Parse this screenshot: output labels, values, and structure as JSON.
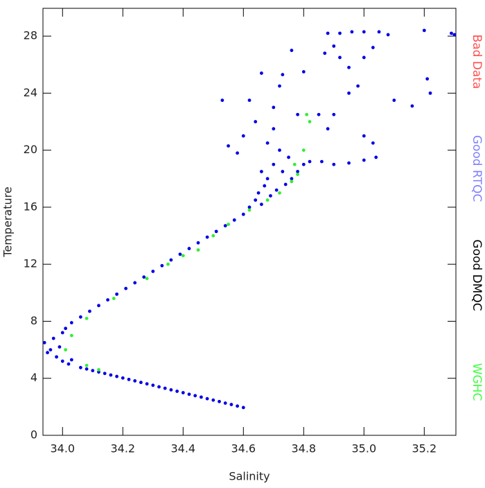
{
  "chart_data": {
    "type": "scatter",
    "x_label": "Salinity",
    "y_label": "Temperature",
    "xlim": [
      33.935,
      35.305
    ],
    "ylim": [
      0,
      29.95
    ],
    "xticks": [
      {
        "value": 34,
        "label": "34.0"
      },
      {
        "value": 34.2,
        "label": "34.2"
      },
      {
        "value": 34.4,
        "label": "34.4"
      },
      {
        "value": 34.6,
        "label": "34.6"
      },
      {
        "value": 34.8,
        "label": "34.8"
      },
      {
        "value": 35,
        "label": "35.0"
      },
      {
        "value": 35.2,
        "label": "35.2"
      }
    ],
    "yticks": [
      0,
      4,
      8,
      12,
      16,
      20,
      24,
      28
    ],
    "series": [
      {
        "name": "Bad Data",
        "color": "#ff5050",
        "marker_color": "#ff0000",
        "x": [],
        "values": []
      },
      {
        "name": "Good RTQC",
        "color": "#8080ff",
        "marker_color": "#0000e6",
        "x": [
          34.06,
          34.08,
          34.1,
          34.12,
          34.14,
          34.16,
          34.18,
          34.2,
          34.22,
          34.24,
          34.26,
          34.28,
          34.3,
          34.32,
          34.34,
          34.36,
          34.38,
          34.4,
          34.42,
          34.44,
          34.46,
          34.48,
          34.5,
          34.52,
          34.54,
          34.56,
          34.58,
          34.6,
          33.94,
          33.96,
          33.97,
          33.98,
          33.99,
          34.0,
          34.02,
          34.03,
          33.95,
          34.0,
          34.01,
          34.03,
          34.06,
          34.09,
          34.12,
          34.15,
          34.18,
          34.21,
          34.24,
          34.27,
          34.3,
          34.33,
          34.36,
          34.39,
          34.42,
          34.45,
          34.48,
          34.51,
          34.54,
          34.57,
          34.6,
          34.62,
          34.64,
          34.65,
          34.66,
          34.67,
          34.68,
          34.69,
          34.7,
          34.71,
          34.72,
          34.73,
          34.74,
          34.75,
          34.76,
          34.78,
          34.8,
          34.66,
          34.68,
          34.7,
          34.62,
          34.64,
          34.66,
          34.7,
          34.72,
          34.73,
          34.76,
          34.78,
          34.6,
          34.58,
          34.55,
          34.53,
          34.82,
          34.86,
          34.9,
          34.95,
          35.0,
          35.04,
          35.03,
          34.88,
          34.9,
          34.95,
          34.87,
          34.9,
          34.92,
          34.95,
          34.88,
          34.92,
          34.96,
          35.0,
          35.05,
          35.08,
          35.2,
          35.29,
          35.3,
          35.1,
          35.16,
          35.22,
          35.21,
          35.0,
          35.03,
          34.98,
          35.0,
          34.85,
          34.8
        ],
        "values": [
          4.75,
          4.65,
          4.54,
          4.44,
          4.34,
          4.23,
          4.13,
          4.02,
          3.92,
          3.82,
          3.71,
          3.61,
          3.51,
          3.4,
          3.3,
          3.19,
          3.09,
          2.99,
          2.88,
          2.78,
          2.68,
          2.57,
          2.47,
          2.37,
          2.26,
          2.16,
          2.05,
          1.95,
          6.5,
          6.0,
          6.8,
          5.5,
          6.2,
          5.2,
          5.0,
          5.3,
          5.8,
          7.2,
          7.5,
          7.9,
          8.3,
          8.7,
          9.1,
          9.5,
          9.9,
          10.3,
          10.7,
          11.1,
          11.5,
          11.9,
          12.3,
          12.7,
          13.1,
          13.5,
          13.9,
          14.3,
          14.7,
          15.1,
          15.5,
          16.0,
          16.5,
          17.0,
          16.2,
          17.5,
          18.0,
          16.8,
          19.0,
          17.2,
          20.0,
          18.5,
          17.6,
          19.5,
          18.0,
          18.5,
          19.0,
          18.5,
          20.5,
          21.5,
          23.5,
          22.0,
          25.4,
          23.0,
          24.5,
          25.3,
          27.0,
          22.5,
          21.0,
          19.8,
          20.3,
          23.5,
          19.2,
          19.2,
          19.0,
          19.1,
          19.3,
          19.5,
          20.5,
          21.5,
          22.5,
          24.0,
          26.8,
          27.3,
          26.5,
          25.8,
          28.2,
          28.2,
          28.3,
          28.3,
          28.3,
          28.1,
          28.4,
          28.2,
          28.1,
          23.5,
          23.1,
          24.0,
          25.0,
          26.5,
          27.2,
          24.5,
          21.0,
          22.5,
          25.5
        ]
      },
      {
        "name": "Good DMQC",
        "color": "#000000",
        "marker_color": "#000000",
        "x": [],
        "values": []
      },
      {
        "name": "WGHC",
        "color": "#40ff40",
        "marker_color": "#33ee33",
        "x": [
          34.01,
          34.03,
          34.08,
          34.08,
          34.12,
          34.17,
          34.28,
          34.35,
          34.4,
          34.45,
          34.5,
          34.55,
          34.62,
          34.68,
          34.72,
          34.76,
          34.78,
          34.8,
          34.81,
          34.82,
          34.77
        ],
        "values": [
          6.0,
          7.0,
          4.9,
          8.2,
          4.6,
          9.6,
          11.0,
          12.0,
          12.6,
          13.0,
          14.0,
          14.8,
          15.8,
          16.5,
          17.0,
          17.8,
          18.3,
          20.0,
          22.5,
          22.0,
          19.0
        ]
      }
    ]
  }
}
